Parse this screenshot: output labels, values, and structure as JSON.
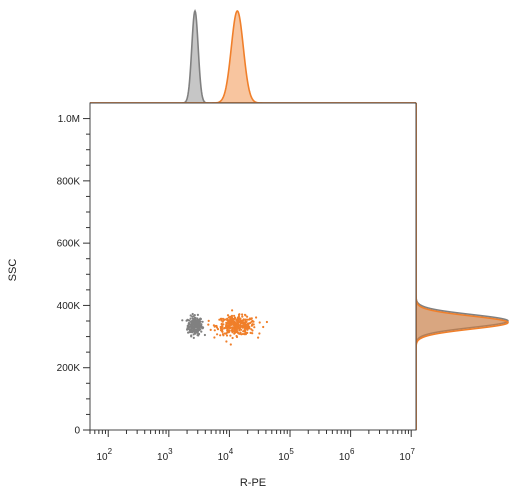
{
  "chart_data": {
    "type": "scatter",
    "xlabel": "R-PE",
    "ylabel": "SSC",
    "x_scale": "log",
    "xlim": [
      50,
      12000000
    ],
    "ylim": [
      0,
      1050000
    ],
    "x_ticks": [
      {
        "value": 100,
        "base": "10",
        "exp": "2"
      },
      {
        "value": 1000,
        "base": "10",
        "exp": "3"
      },
      {
        "value": 10000,
        "base": "10",
        "exp": "4"
      },
      {
        "value": 100000,
        "base": "10",
        "exp": "5"
      },
      {
        "value": 1000000,
        "base": "10",
        "exp": "6"
      },
      {
        "value": 10000000,
        "base": "10",
        "exp": "7"
      }
    ],
    "y_ticks": [
      {
        "value": 0,
        "label": "0"
      },
      {
        "value": 200000,
        "label": "200K"
      },
      {
        "value": 400000,
        "label": "400K"
      },
      {
        "value": 600000,
        "label": "600K"
      },
      {
        "value": 800000,
        "label": "800K"
      },
      {
        "value": 1000000,
        "label": "1.0M"
      }
    ],
    "grid": false,
    "series": [
      {
        "color": "#808080",
        "center_x": 2700,
        "center_y": 335000,
        "spread_x_decades": 0.06,
        "spread_y": 15000,
        "histogram_x_peak": 2700,
        "histogram_y_peak": 350000
      },
      {
        "color": "#f07f2a",
        "center_x": 13000,
        "center_y": 335000,
        "spread_x_decades": 0.16,
        "spread_y": 15000,
        "histogram_x_peak": 13500,
        "histogram_y_peak": 345000
      }
    ]
  }
}
